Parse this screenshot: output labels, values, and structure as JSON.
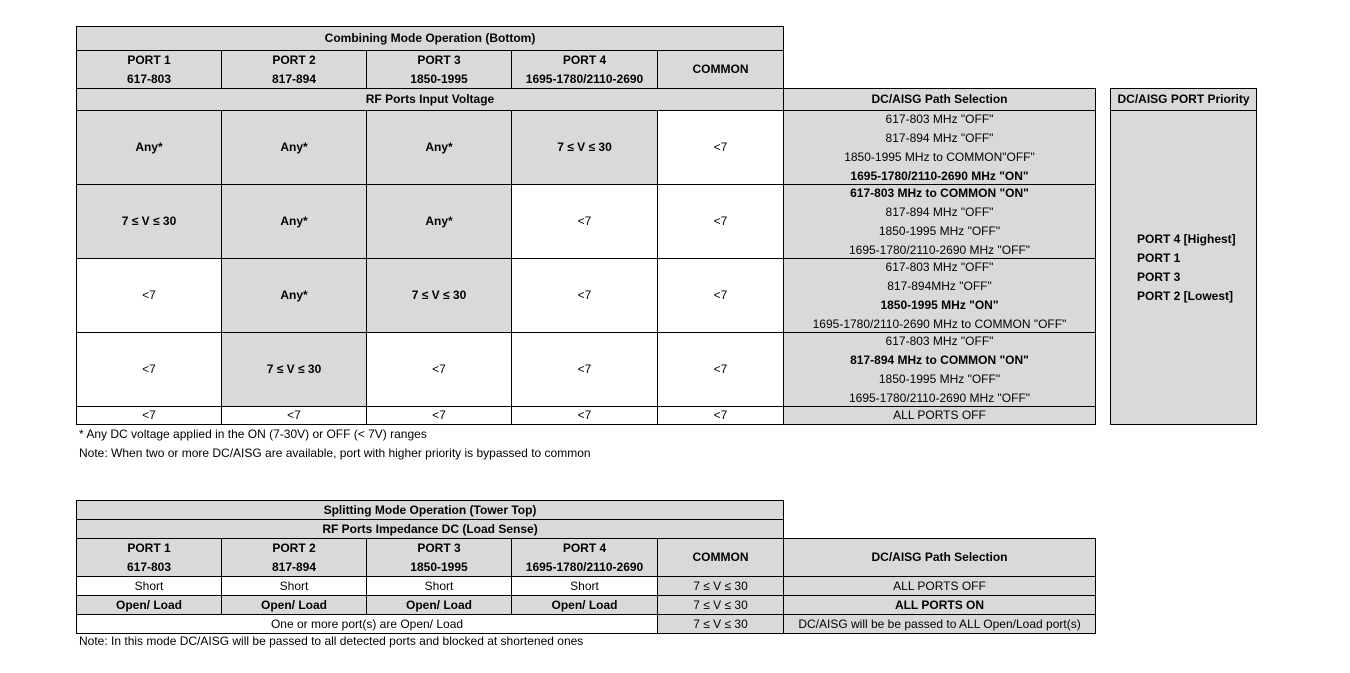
{
  "combining": {
    "title": "Combining Mode Operation (Bottom)",
    "headers": [
      {
        "line1": "PORT 1",
        "line2": "617-803"
      },
      {
        "line1": "PORT 2",
        "line2": "817-894"
      },
      {
        "line1": "PORT 3",
        "line2": "1850-1995"
      },
      {
        "line1": "PORT 4",
        "line2": "1695-1780/2110-2690"
      },
      {
        "line1": "COMMON"
      }
    ],
    "voltage_label": "RF Ports Input Voltage",
    "path_label": "DC/AISG Path Selection",
    "rows": [
      {
        "cells": [
          {
            "text": "Any*",
            "shaded": true,
            "bold": true
          },
          {
            "text": "Any*",
            "shaded": true,
            "bold": true
          },
          {
            "text": "Any*",
            "shaded": true,
            "bold": true
          },
          {
            "text": "7 ≤ V ≤ 30",
            "shaded": true,
            "bold": true
          },
          {
            "text": "<7",
            "shaded": false,
            "bold": false
          }
        ],
        "path": [
          {
            "text": "617-803 MHz  \"OFF\"",
            "bold": false
          },
          {
            "text": "817-894 MHz \"OFF\"",
            "bold": false
          },
          {
            "text": "1850-1995 MHz to COMMON\"OFF\"",
            "bold": false
          },
          {
            "text": "1695-1780/2110-2690 MHz \"ON\"",
            "bold": true
          }
        ]
      },
      {
        "cells": [
          {
            "text": "7 ≤ V ≤ 30",
            "shaded": true,
            "bold": true
          },
          {
            "text": "Any*",
            "shaded": true,
            "bold": true
          },
          {
            "text": "Any*",
            "shaded": true,
            "bold": true
          },
          {
            "text": "<7",
            "shaded": false,
            "bold": false
          },
          {
            "text": "<7",
            "shaded": false,
            "bold": false
          }
        ],
        "path": [
          {
            "text": "617-803 MHz to  COMMON \"ON\"",
            "bold": true
          },
          {
            "text": "817-894 MHz \"OFF\"",
            "bold": false
          },
          {
            "text": "1850-1995 MHz \"OFF\"",
            "bold": false
          },
          {
            "text": "1695-1780/2110-2690 MHz \"OFF\"",
            "bold": false
          }
        ]
      },
      {
        "cells": [
          {
            "text": "<7",
            "shaded": false,
            "bold": false
          },
          {
            "text": "Any*",
            "shaded": true,
            "bold": true
          },
          {
            "text": "7 ≤ V ≤ 30",
            "shaded": true,
            "bold": true
          },
          {
            "text": "<7",
            "shaded": false,
            "bold": false
          },
          {
            "text": "<7",
            "shaded": false,
            "bold": false
          }
        ],
        "path": [
          {
            "text": "617-803 MHz \"OFF\"",
            "bold": false
          },
          {
            "text": "817-894MHz \"OFF\"",
            "bold": false
          },
          {
            "text": "1850-1995 MHz \"ON\"",
            "bold": true
          },
          {
            "text": "1695-1780/2110-2690 MHz to COMMON \"OFF\"",
            "bold": false
          }
        ]
      },
      {
        "cells": [
          {
            "text": "<7",
            "shaded": false,
            "bold": false
          },
          {
            "text": "7 ≤ V ≤ 30",
            "shaded": true,
            "bold": true
          },
          {
            "text": "<7",
            "shaded": false,
            "bold": false
          },
          {
            "text": "<7",
            "shaded": false,
            "bold": false
          },
          {
            "text": "<7",
            "shaded": false,
            "bold": false
          }
        ],
        "path": [
          {
            "text": "617-803 MHz \"OFF\"",
            "bold": false
          },
          {
            "text": "817-894 MHz to COMMON \"ON\"",
            "bold": true
          },
          {
            "text": "1850-1995 MHz \"OFF\"",
            "bold": false
          },
          {
            "text": "1695-1780/2110-2690 MHz \"OFF\"",
            "bold": false
          }
        ]
      },
      {
        "cells": [
          {
            "text": "<7",
            "shaded": false,
            "bold": false
          },
          {
            "text": "<7",
            "shaded": false,
            "bold": false
          },
          {
            "text": "<7",
            "shaded": false,
            "bold": false
          },
          {
            "text": "<7",
            "shaded": false,
            "bold": false
          },
          {
            "text": "<7",
            "shaded": false,
            "bold": false
          }
        ],
        "path": [
          {
            "text": "ALL PORTS OFF",
            "bold": false
          }
        ]
      }
    ],
    "priority": {
      "title": "DC/AISG PORT Priority",
      "items": [
        "PORT 4 [Highest]",
        "PORT 1",
        "PORT 3",
        "PORT 2 [Lowest]"
      ]
    },
    "notes": [
      "* Any DC voltage applied in the ON (7-30V) or OFF (< 7V) ranges",
      "Note: When two or more DC/AISG are available, port with higher priority is bypassed to common"
    ]
  },
  "splitting": {
    "title": "Splitting Mode Operation (Tower Top)",
    "impedance_label": "RF Ports Impedance DC (Load Sense)",
    "headers": [
      {
        "line1": "PORT 1",
        "line2": "617-803"
      },
      {
        "line1": "PORT 2",
        "line2": "817-894"
      },
      {
        "line1": "PORT 3",
        "line2": "1850-1995"
      },
      {
        "line1": "PORT 4",
        "line2": "1695-1780/2110-2690"
      },
      {
        "line1": "COMMON"
      },
      {
        "line1": "DC/AISG Path Selection"
      }
    ],
    "rows": [
      {
        "ports": [
          "Short",
          "Short",
          "Short",
          "Short"
        ],
        "shaded": false,
        "bold": false,
        "common": "7 ≤ V ≤ 30",
        "path": "ALL PORTS OFF",
        "path_bold": false
      },
      {
        "ports": [
          "Open/ Load",
          "Open/ Load",
          "Open/ Load",
          "Open/ Load"
        ],
        "shaded": true,
        "bold": true,
        "common": "7 ≤ V ≤ 30",
        "path": "ALL PORTS ON",
        "path_bold": true
      },
      {
        "merged": "One or more port(s) are Open/ Load",
        "shaded": false,
        "bold": false,
        "common": "7 ≤ V ≤ 30",
        "path": "DC/AISG will be be passed to ALL Open/Load port(s)",
        "path_bold": false
      }
    ],
    "note": "Note: In this mode DC/AISG will be passed to all detected ports and blocked at shortened ones"
  }
}
